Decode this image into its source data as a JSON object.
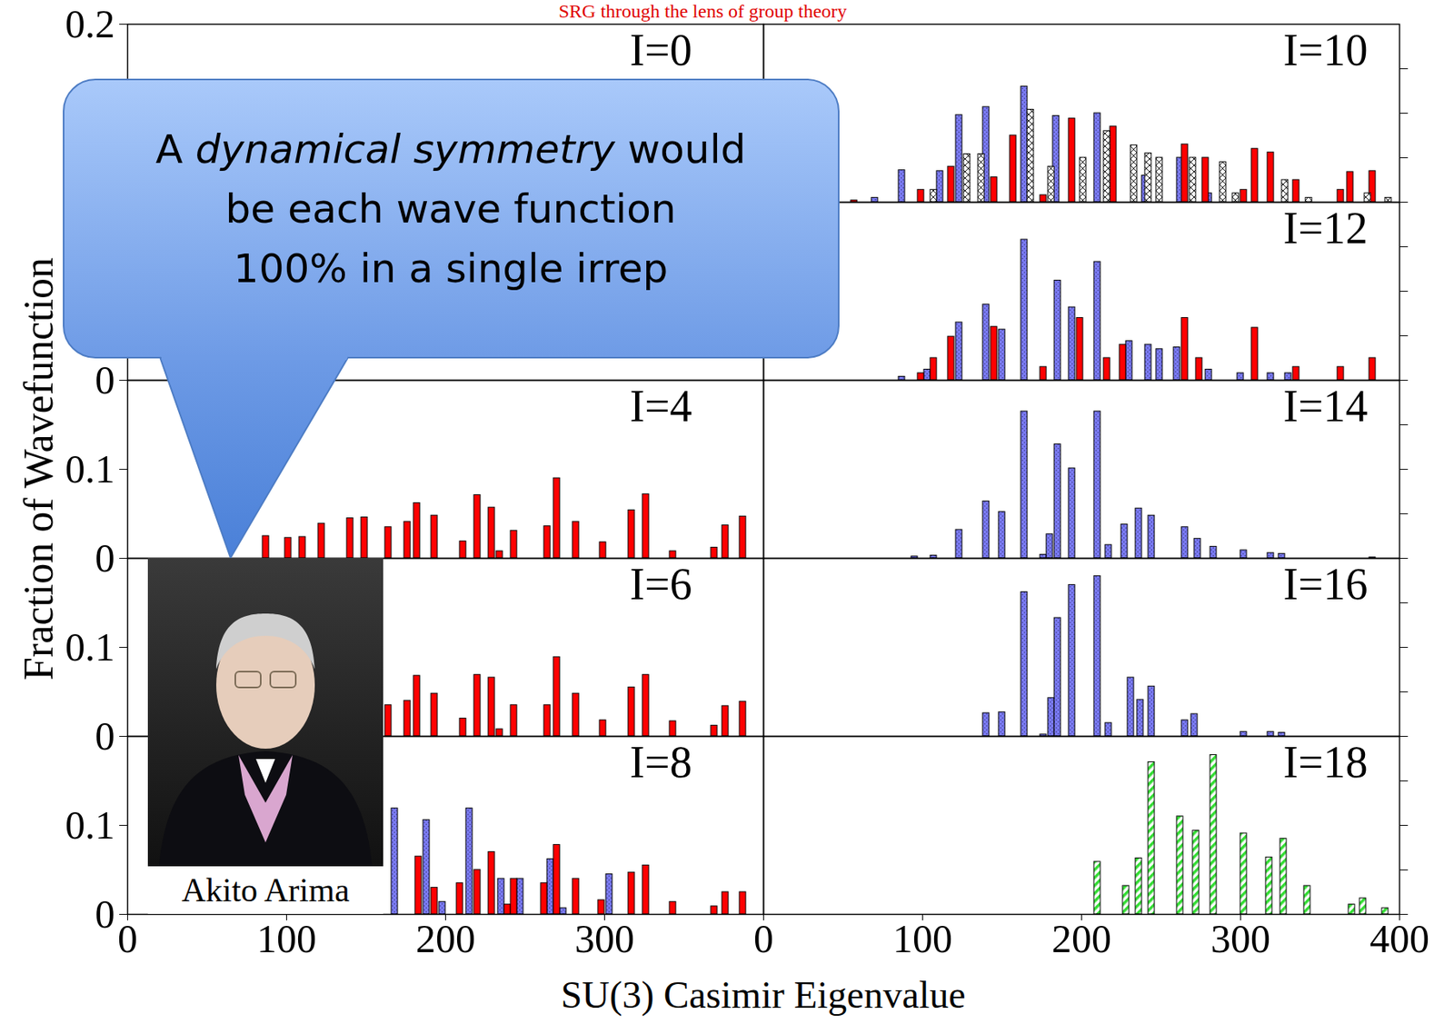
{
  "chart_data": {
    "type": "bar",
    "title": "SRG through the lens of group theory",
    "xlabel": "SU(3) Casimir Eigenvalue",
    "ylabel": "Fraction of Wavefunction",
    "xlim": [
      0,
      400
    ],
    "ylim": [
      0,
      0.2
    ],
    "annotation": {
      "lines": [
        "A dynamical symmetry would",
        "be each wave function",
        "100% in a single irrep"
      ],
      "italic": "dynamical symmetry"
    },
    "photo_caption": "Akito Arima",
    "panels": [
      {
        "title": "I=0",
        "yticks": [
          0.2
        ],
        "tick_labels": "y",
        "series": []
      },
      {
        "yticks": [
          0
        ],
        "tick_labels": "y",
        "series": []
      },
      {
        "title": "I=4",
        "yticks": [
          0,
          0.1
        ],
        "tick_labels": "y",
        "series": [
          {
            "color": "#ff0000",
            "x": [
              87,
              101,
              110,
              122,
              140,
              149,
              164,
              176,
              182,
              193,
              211,
              220,
              229,
              234,
              243,
              264,
              270,
              282,
              299,
              317,
              326,
              343,
              369,
              376,
              387
            ],
            "values": [
              0.025,
              0.023,
              0.024,
              0.039,
              0.045,
              0.046,
              0.035,
              0.041,
              0.062,
              0.048,
              0.019,
              0.071,
              0.057,
              0.008,
              0.031,
              0.036,
              0.09,
              0.041,
              0.018,
              0.054,
              0.072,
              0.008,
              0.012,
              0.037,
              0.047
            ]
          }
        ]
      },
      {
        "title": "I=6",
        "yticks": [
          0,
          0.1
        ],
        "tick_labels": "y",
        "series": [
          {
            "color": "#ff0000",
            "x": [
              164,
              176,
              182,
              193,
              211,
              220,
              229,
              234,
              243,
              264,
              270,
              282,
              299,
              317,
              326,
              343,
              369,
              376,
              387
            ],
            "values": [
              0.035,
              0.04,
              0.068,
              0.048,
              0.02,
              0.069,
              0.066,
              0.008,
              0.035,
              0.035,
              0.089,
              0.048,
              0.018,
              0.055,
              0.069,
              0.017,
              0.012,
              0.034,
              0.039
            ]
          }
        ]
      },
      {
        "title": "I=8",
        "xticks": [
          0,
          100,
          200,
          300
        ],
        "yticks": [
          0,
          0.1
        ],
        "tick_labels": true,
        "series": [
          {
            "color": "#7b7bf7",
            "x": [
              168,
              188,
              198,
              215,
              235,
              247,
              266,
              274,
              303
            ],
            "values": [
              0.119,
              0.106,
              0.014,
              0.119,
              0.04,
              0.04,
              0.062,
              0.007,
              0.045
            ]
          },
          {
            "color": "#ff0000",
            "x": [
              183,
              193,
              209,
              220,
              229,
              239,
              243,
              262,
              270,
              282,
              298,
              317,
              326,
              343,
              369,
              376,
              387
            ],
            "values": [
              0.065,
              0.03,
              0.035,
              0.05,
              0.07,
              0.011,
              0.04,
              0.035,
              0.078,
              0.04,
              0.016,
              0.047,
              0.055,
              0.014,
              0.009,
              0.025,
              0.025
            ]
          }
        ]
      },
      {
        "title": "I=10",
        "yticks": [
          0,
          0.05,
          0.1,
          0.15
        ],
        "tick_labels": false,
        "series": [
          {
            "color": "#7b7bf7",
            "x": [
              70,
              87,
              111,
              123,
              140,
              164,
              184,
              210,
              240,
              262,
              280
            ],
            "values": [
              0.005,
              0.036,
              0.035,
              0.098,
              0.107,
              0.13,
              0.097,
              0.1,
              0.03,
              0.05,
              0.01
            ]
          },
          {
            "color": "#ff0000",
            "x": [
              57,
              99,
              118,
              145,
              157,
              176,
              194,
              220,
              265,
              278,
              302,
              309,
              319,
              335,
              363,
              369,
              383
            ],
            "values": [
              0.002,
              0.014,
              0.04,
              0.028,
              0.075,
              0.008,
              0.094,
              0.085,
              0.065,
              0.05,
              0.014,
              0.06,
              0.056,
              0.025,
              0.014,
              0.034,
              0.035
            ]
          },
          {
            "color": "#ffffff",
            "x": [
              107,
              128,
              137,
              168,
              181,
              201,
              216,
              233,
              242,
              249,
              270,
              289,
              297,
              328,
              343,
              380,
              393
            ],
            "values": [
              0.014,
              0.054,
              0.054,
              0.104,
              0.04,
              0.05,
              0.08,
              0.064,
              0.055,
              0.05,
              0.05,
              0.045,
              0.01,
              0.025,
              0.005,
              0.01,
              0.005
            ]
          }
        ]
      },
      {
        "title": "I=12",
        "yticks": [
          0,
          0.05,
          0.1,
          0.15
        ],
        "tick_labels": false,
        "series": [
          {
            "color": "#7b7bf7",
            "x": [
              87,
              103,
              123,
              140,
              150,
              164,
              185,
              194,
              210,
              230,
              242,
              249,
              260,
              280,
              300,
              319,
              330
            ],
            "values": [
              0.004,
              0.012,
              0.065,
              0.085,
              0.057,
              0.158,
              0.112,
              0.082,
              0.133,
              0.044,
              0.04,
              0.035,
              0.037,
              0.012,
              0.008,
              0.008,
              0.008
            ]
          },
          {
            "color": "#ff0000",
            "x": [
              99,
              107,
              118,
              145,
              176,
              199,
              216,
              226,
              265,
              274,
              309,
              335,
              363,
              383
            ],
            "values": [
              0.008,
              0.025,
              0.049,
              0.06,
              0.015,
              0.07,
              0.025,
              0.04,
              0.07,
              0.025,
              0.059,
              0.015,
              0.015,
              0.025
            ]
          }
        ]
      },
      {
        "title": "I=14",
        "yticks": [
          0,
          0.05,
          0.1,
          0.15
        ],
        "tick_labels": false,
        "series": [
          {
            "color": "#7b7bf7",
            "x": [
              95,
              107,
              123,
              140,
              150,
              164,
              176,
              180,
              185,
              194,
              210,
              217,
              227,
              236,
              244,
              265,
              273,
              283,
              302,
              319,
              326,
              383
            ],
            "values": [
              0.002,
              0.003,
              0.032,
              0.064,
              0.052,
              0.165,
              0.004,
              0.027,
              0.128,
              0.101,
              0.165,
              0.015,
              0.038,
              0.056,
              0.048,
              0.035,
              0.022,
              0.013,
              0.009,
              0.006,
              0.005,
              0.001
            ]
          }
        ]
      },
      {
        "title": "I=16",
        "yticks": [
          0,
          0.05,
          0.1,
          0.15
        ],
        "tick_labels": false,
        "series": [
          {
            "color": "#7b7bf7",
            "x": [
              140,
              150,
              164,
              176,
              181,
              185,
              194,
              210,
              217,
              231,
              237,
              244,
              265,
              271,
              302,
              319,
              326
            ],
            "values": [
              0.026,
              0.027,
              0.162,
              0.002,
              0.043,
              0.133,
              0.17,
              0.18,
              0.015,
              0.066,
              0.041,
              0.056,
              0.018,
              0.025,
              0.005,
              0.005,
              0.004
            ]
          }
        ]
      },
      {
        "title": "I=18",
        "xticks": [
          0,
          100,
          200,
          300,
          400
        ],
        "yticks": [
          0,
          0.05,
          0.1,
          0.15
        ],
        "tick_labels": "x",
        "series": [
          {
            "color": "#33dd33",
            "x": [
              210,
              228,
              236,
              244,
              262,
              272,
              283,
              302,
              318,
              327,
              342,
              370,
              377,
              391
            ],
            "values": [
              0.059,
              0.032,
              0.063,
              0.171,
              0.11,
              0.094,
              0.179,
              0.091,
              0.064,
              0.085,
              0.032,
              0.011,
              0.018,
              0.007
            ]
          }
        ]
      }
    ]
  }
}
